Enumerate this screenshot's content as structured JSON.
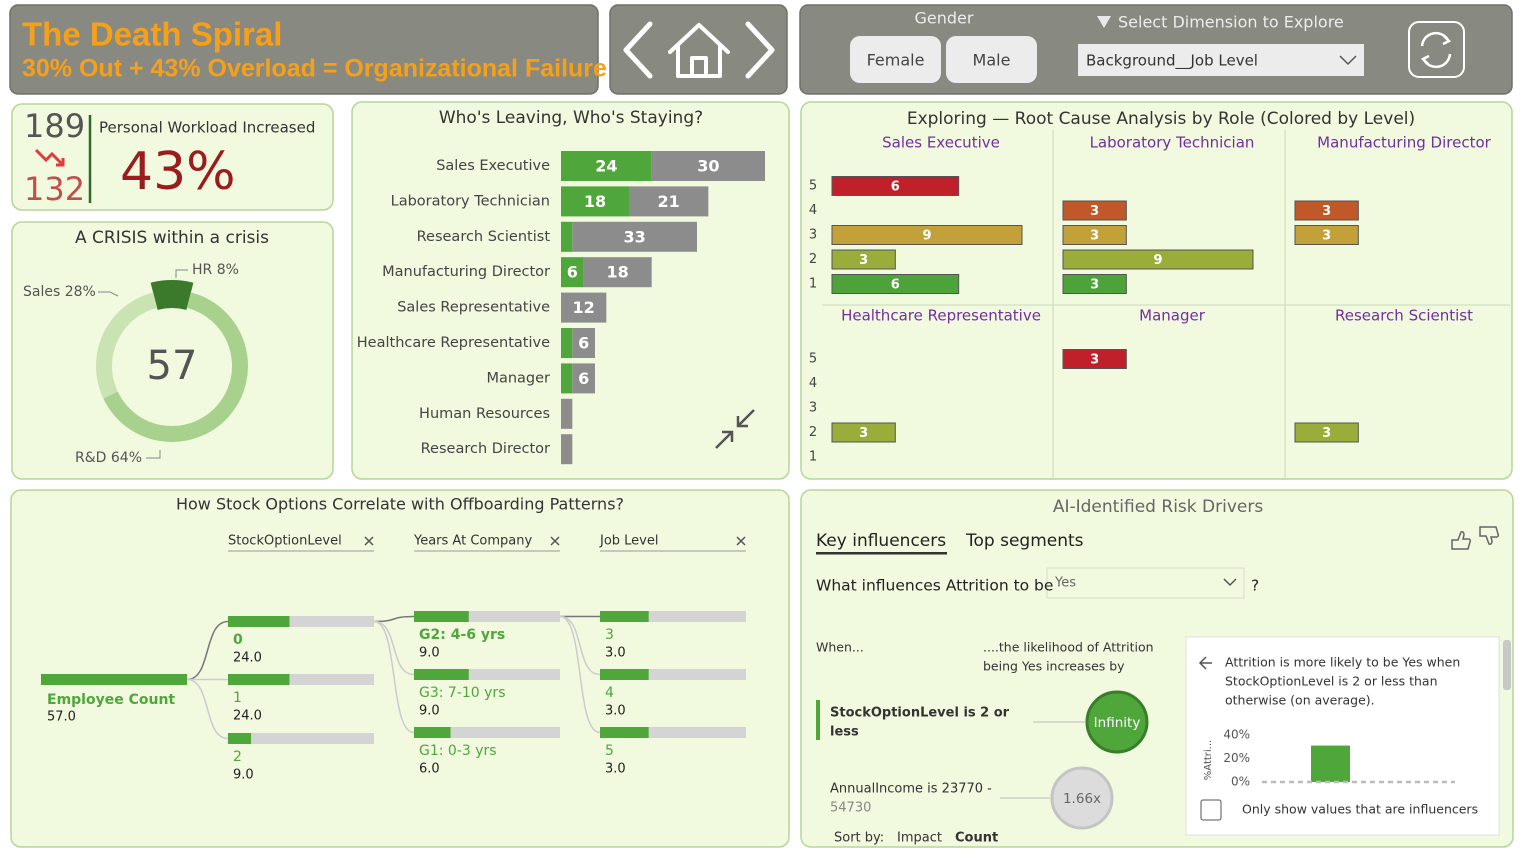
{
  "header": {
    "title": "The Death Spiral",
    "subtitle": "30% Out + 43% Overload = Organizational Failure"
  },
  "filters": {
    "gender_label": "Gender",
    "gender_options": [
      "Female",
      "Male"
    ],
    "dimension_label": "Select Dimension to Explore",
    "dimension_value": "Background__Job Level"
  },
  "kpi": {
    "before": 189,
    "after": 132,
    "label": "Personal Workload Increased",
    "value": "43%"
  },
  "chart_data": [
    {
      "type": "donut",
      "title": "A CRISIS within a crisis",
      "center_value": 57,
      "values": [
        8,
        64,
        28
      ],
      "value_labels": [
        "HR 8%",
        "R&D 64%",
        "Sales 28%"
      ],
      "colors": [
        "#3b7a2a",
        "#a9d18e",
        "#c9e3b3"
      ]
    },
    {
      "type": "stacked-hbar",
      "title": "Who's Leaving, Who's Staying?",
      "categories": [
        "Sales Executive",
        "Laboratory Technician",
        "Research Scientist",
        "Manufacturing Director",
        "Sales Representative",
        "Healthcare Representative",
        "Manager",
        "Human Resources",
        "Research Director"
      ],
      "series": [
        {
          "color": "#4fa63a",
          "values": [
            24,
            18,
            3,
            6,
            0,
            3,
            3,
            0,
            0
          ]
        },
        {
          "color": "#8c8c8c",
          "values": [
            30,
            21,
            33,
            18,
            12,
            6,
            6,
            3,
            3
          ]
        }
      ]
    },
    {
      "type": "small-multiples-hbar",
      "title": "Exploring — Root Cause Analysis by Role (Colored by Level)",
      "categories": [
        "5",
        "4",
        "3",
        "2",
        "1"
      ],
      "colors": [
        "#c0202a",
        "#c0582a",
        "#c2a03a",
        "#9aac3a",
        "#4ea23a"
      ],
      "panels": [
        {
          "title": "Sales Executive",
          "values": [
            6,
            null,
            9,
            3,
            6
          ]
        },
        {
          "title": "Laboratory Technician",
          "values": [
            null,
            3,
            3,
            9,
            3
          ]
        },
        {
          "title": "Manufacturing Director",
          "values": [
            null,
            3,
            3,
            null,
            null
          ]
        },
        {
          "title": "Healthcare Representative",
          "values": [
            null,
            null,
            null,
            3,
            null
          ]
        },
        {
          "title": "Manager",
          "values": [
            3,
            null,
            null,
            null,
            null
          ]
        },
        {
          "title": "Research Scientist",
          "values": [
            null,
            null,
            null,
            3,
            null
          ]
        }
      ]
    },
    {
      "type": "decomposition-tree",
      "title": "How Stock Options Correlate with Offboarding Patterns?",
      "color": "#4fa63a",
      "root": {
        "label": "Employee Count",
        "value": 57,
        "value_label": "57.0"
      },
      "levels": [
        {
          "header": "StockOptionLevel",
          "nodes": [
            {
              "label": "0",
              "value": 24,
              "value_label": "24.0"
            },
            {
              "label": "1",
              "value": 24,
              "value_label": "24.0"
            },
            {
              "label": "2",
              "value": 9,
              "value_label": "9.0"
            }
          ]
        },
        {
          "header": "Years At Company",
          "nodes": [
            {
              "label": "G2: 4-6 yrs",
              "value": 9,
              "value_label": "9.0"
            },
            {
              "label": "G3: 7-10 yrs",
              "value": 9,
              "value_label": "9.0"
            },
            {
              "label": "G1: 0-3 yrs",
              "value": 6,
              "value_label": "6.0"
            }
          ]
        },
        {
          "header": "Job Level",
          "nodes": [
            {
              "label": "3",
              "value": 3,
              "value_label": "3.0"
            },
            {
              "label": "4",
              "value": 3,
              "value_label": "3.0"
            },
            {
              "label": "5",
              "value": 3,
              "value_label": "3.0"
            }
          ]
        }
      ]
    },
    {
      "type": "key-influencers",
      "title": "AI-Identified Risk Drivers",
      "tabs": [
        "Key influencers",
        "Top segments"
      ],
      "question": "What influences Attrition to be",
      "selected": "Yes",
      "question_mark": "?",
      "when_header": "When...",
      "likelihood_header": [
        "....the likelihood of Attrition",
        "being Yes increases by"
      ],
      "influencers": [
        {
          "text": [
            "StockOptionLevel is 2 or",
            "less"
          ],
          "factor": "Infinity"
        },
        {
          "text": [
            "AnnualIncome is 23770 -",
            "54730"
          ],
          "factor": "1.66x"
        }
      ],
      "sort_label": "Sort by:",
      "sort_options": [
        "Impact",
        "Count"
      ],
      "detail": {
        "text": [
          "Attrition is more likely to be Yes when",
          "StockOptionLevel is 2 or less than",
          "otherwise (on average)."
        ],
        "ylabel": "%Attri...",
        "ylim": [
          0,
          40
        ],
        "yticks": [
          {
            "value": 0,
            "label": "0%"
          },
          {
            "value": 20,
            "label": "20%"
          },
          {
            "value": 40,
            "label": "40%"
          }
        ],
        "values": [
          31
        ],
        "color": "#4fa63a",
        "checkbox_label": "Only show values that are influencers"
      }
    }
  ]
}
